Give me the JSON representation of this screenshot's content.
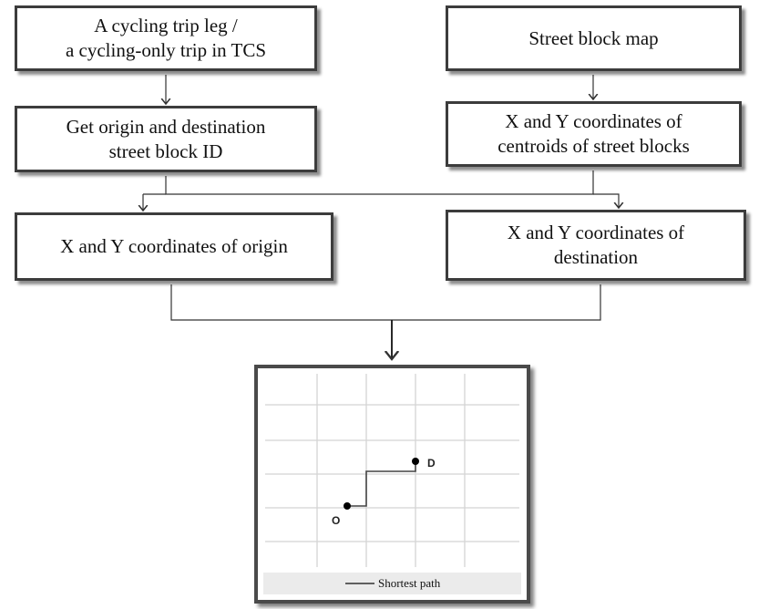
{
  "boxes": {
    "trip": "A cycling trip leg /\na cycling-only trip in TCS",
    "block_map": "Street block map",
    "get_ids": "Get origin and destination\nstreet block ID",
    "centroids": "X and Y coordinates of\ncentroids of street blocks",
    "origin_coords": "X and Y coordinates of origin",
    "destination_coords": "X and Y coordinates of\ndestination"
  },
  "map": {
    "origin_label": "O",
    "destination_label": "D",
    "legend_label": "Shortest path"
  },
  "colors": {
    "box_border": "#3c3c3c",
    "arrow": "#333333",
    "grid_line": "#d4d4d4",
    "path": "#444444"
  }
}
